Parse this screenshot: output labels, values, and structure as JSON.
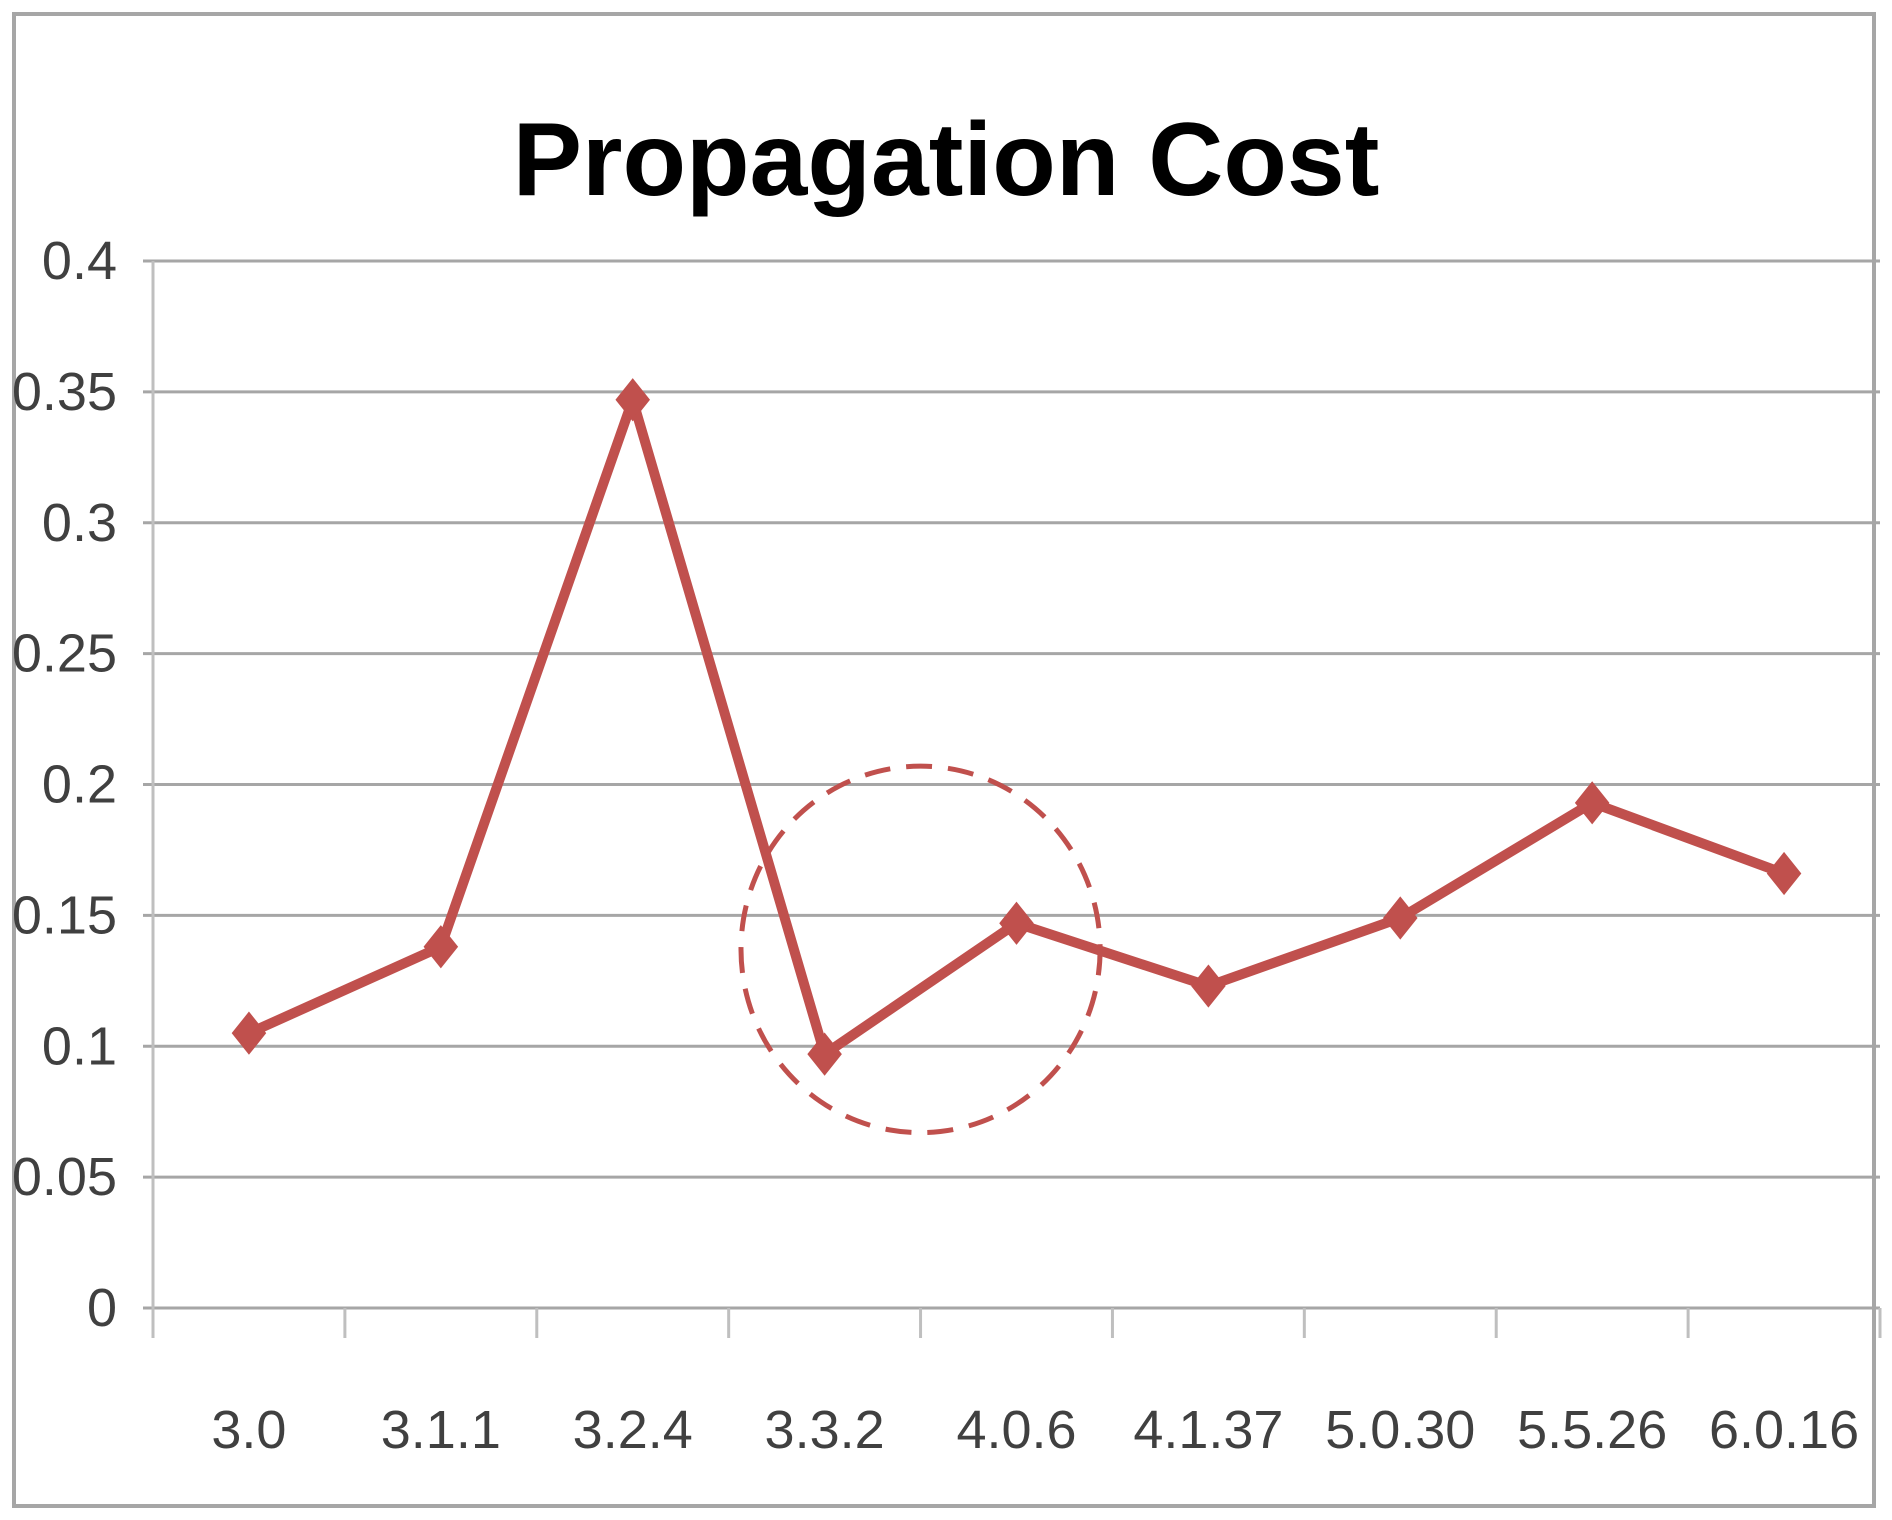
{
  "chart_data": {
    "type": "line",
    "title": "Propagation Cost",
    "categories": [
      "3.0",
      "3.1.1",
      "3.2.4",
      "3.3.2",
      "4.0.6",
      "4.1.37",
      "5.0.30",
      "5.5.26",
      "6.0.16"
    ],
    "series": [
      {
        "values": [
          0.105,
          0.138,
          0.347,
          0.097,
          0.147,
          0.123,
          0.149,
          0.193,
          0.166
        ]
      }
    ],
    "yticks": [
      "0",
      "0.05",
      "0.1",
      "0.15",
      "0.2",
      "0.25",
      "0.3",
      "0.35",
      "0.4"
    ],
    "ylim": [
      0,
      0.4
    ],
    "grid": true,
    "legend": "none",
    "annotation": {
      "type": "dashed-circle",
      "center": {
        "x": "between 3.3.2 and 4.0.6",
        "y": 0.137
      },
      "radius_y": 0.07
    },
    "colors": {
      "series": "#c0504d",
      "grid": "#a6a6a6",
      "axis": "#bfbfbf"
    }
  }
}
